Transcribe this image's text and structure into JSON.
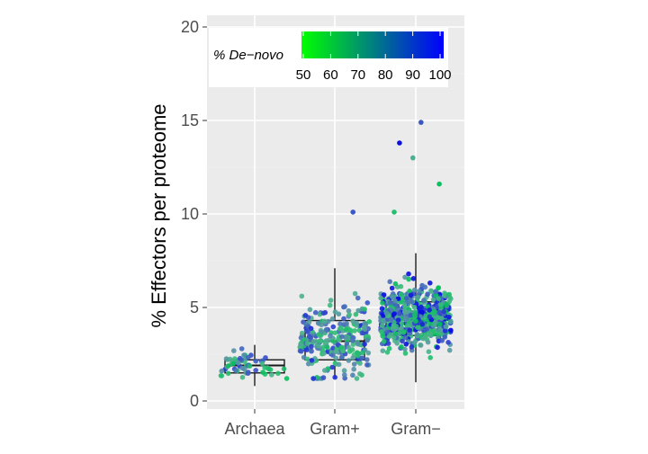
{
  "chart_data": {
    "type": "scatter",
    "subtype": "jittered points with box plots",
    "ylabel": "% Effectors per proteome",
    "xlabel": "",
    "categories": [
      "Archaea",
      "Gram+",
      "Gram−"
    ],
    "ylim": [
      0,
      20
    ],
    "yticks": [
      0,
      5,
      10,
      15,
      20
    ],
    "grid": true,
    "legend": {
      "title": "% De−novo",
      "placement": "top-left inside",
      "colorbar_ticks": [
        50,
        60,
        70,
        80,
        90,
        100
      ],
      "color_low": "#00ff00",
      "color_high": "#0000ff",
      "range": [
        50,
        100
      ]
    },
    "boxes": [
      {
        "category": "Archaea",
        "min": 0.8,
        "q1": 1.5,
        "median": 1.9,
        "q3": 2.2,
        "max": 3.0
      },
      {
        "category": "Gram+",
        "min": 1.2,
        "q1": 2.2,
        "median": 3.2,
        "q3": 4.3,
        "max": 7.1
      },
      {
        "category": "Gram−",
        "min": 1.0,
        "q1": 3.5,
        "median": 4.5,
        "q3": 5.3,
        "max": 7.9
      }
    ],
    "point_summary": [
      {
        "category": "Archaea",
        "n": 60,
        "range": [
          0.7,
          3.7
        ],
        "denovo_range": [
          50,
          95
        ]
      },
      {
        "category": "Gram+",
        "n": 260,
        "range": [
          1.2,
          10.1
        ],
        "denovo_range": [
          55,
          95
        ]
      },
      {
        "category": "Gram−",
        "n": 620,
        "range": [
          0.8,
          14.9
        ],
        "denovo_range": [
          50,
          100
        ]
      }
    ],
    "outliers": [
      {
        "category": "Gram+",
        "y": 10.1,
        "denovo": 88
      },
      {
        "category": "Gram−",
        "y": 14.9,
        "denovo": 88
      },
      {
        "category": "Gram−",
        "y": 13.8,
        "denovo": 98
      },
      {
        "category": "Gram−",
        "y": 13.0,
        "denovo": 70
      },
      {
        "category": "Gram−",
        "y": 11.6,
        "denovo": 52
      },
      {
        "category": "Gram−",
        "y": 10.1,
        "denovo": 58
      }
    ]
  },
  "colors": {
    "panel_bg": "#ebebeb",
    "grid": "#ffffff",
    "text": "#000000",
    "axis_text": "#4d4d4d",
    "box_line": "#1a1a1a"
  }
}
